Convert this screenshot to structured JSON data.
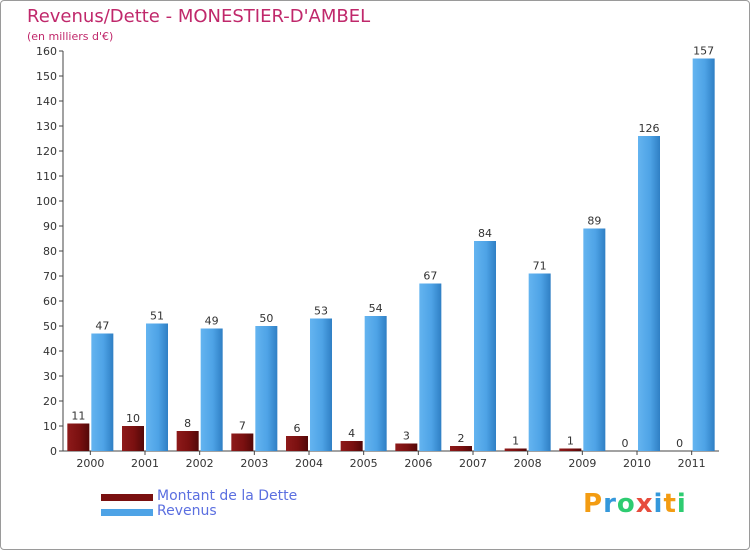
{
  "header": {
    "title": "Revenus/Dette - MONESTIER-D'AMBEL",
    "subtitle": "(en milliers d'€)"
  },
  "chart_data": {
    "type": "bar",
    "title": "Revenus/Dette - MONESTIER-D'AMBEL",
    "ylabel": "(en milliers d'€)",
    "xlabel": "",
    "ylim": [
      0,
      160
    ],
    "y_ticks": [
      0,
      10,
      20,
      30,
      40,
      50,
      60,
      70,
      80,
      90,
      100,
      110,
      120,
      130,
      140,
      150,
      160
    ],
    "grid": false,
    "legend_position": "bottom-left",
    "categories": [
      "2000",
      "2001",
      "2002",
      "2003",
      "2004",
      "2005",
      "2006",
      "2007",
      "2008",
      "2009",
      "2010",
      "2011"
    ],
    "series": [
      {
        "name": "Montant de la Dette",
        "color": "#7a1010",
        "values": [
          11,
          10,
          8,
          7,
          6,
          4,
          3,
          2,
          1,
          1,
          0,
          0
        ]
      },
      {
        "name": "Revenus",
        "color": "#4ea3e6",
        "values": [
          47,
          51,
          49,
          50,
          53,
          54,
          67,
          84,
          71,
          89,
          126,
          157
        ]
      }
    ]
  },
  "legend": {
    "items": [
      {
        "label": "Montant de la Dette",
        "color": "#7a1010"
      },
      {
        "label": "Revenus",
        "color": "#4ea3e6"
      }
    ]
  },
  "brand": {
    "name": "Proxiti",
    "letters": [
      "P",
      "r",
      "o",
      "x",
      "i",
      "t",
      "i"
    ],
    "colors": [
      "#f39c12",
      "#3498db",
      "#2ecc71",
      "#e74c3c",
      "#3498db",
      "#f39c12",
      "#2ecc71"
    ]
  }
}
